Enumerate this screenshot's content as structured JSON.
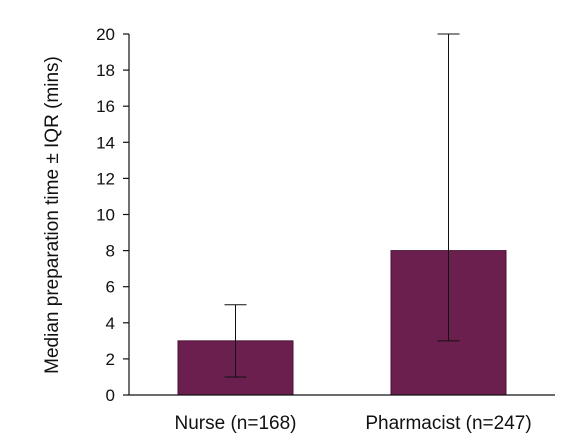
{
  "chart_data": {
    "type": "bar",
    "title": "",
    "xlabel": "",
    "ylabel": "Median preparation time ± IQR (mins)",
    "categories": [
      "Nurse (n=168)",
      "Pharmacist (n=247)"
    ],
    "values": [
      3,
      8
    ],
    "error_low": [
      1,
      3
    ],
    "error_high": [
      5,
      20
    ],
    "ylim": [
      0,
      20
    ],
    "yticks": [
      0,
      2,
      4,
      6,
      8,
      10,
      12,
      14,
      16,
      18,
      20
    ],
    "grid": false,
    "legend": "none",
    "bar_color": "#6b1f4e",
    "bar_edge_color": "#4a1233",
    "error_bar_color": "#111111",
    "axis_color": "#111111"
  }
}
